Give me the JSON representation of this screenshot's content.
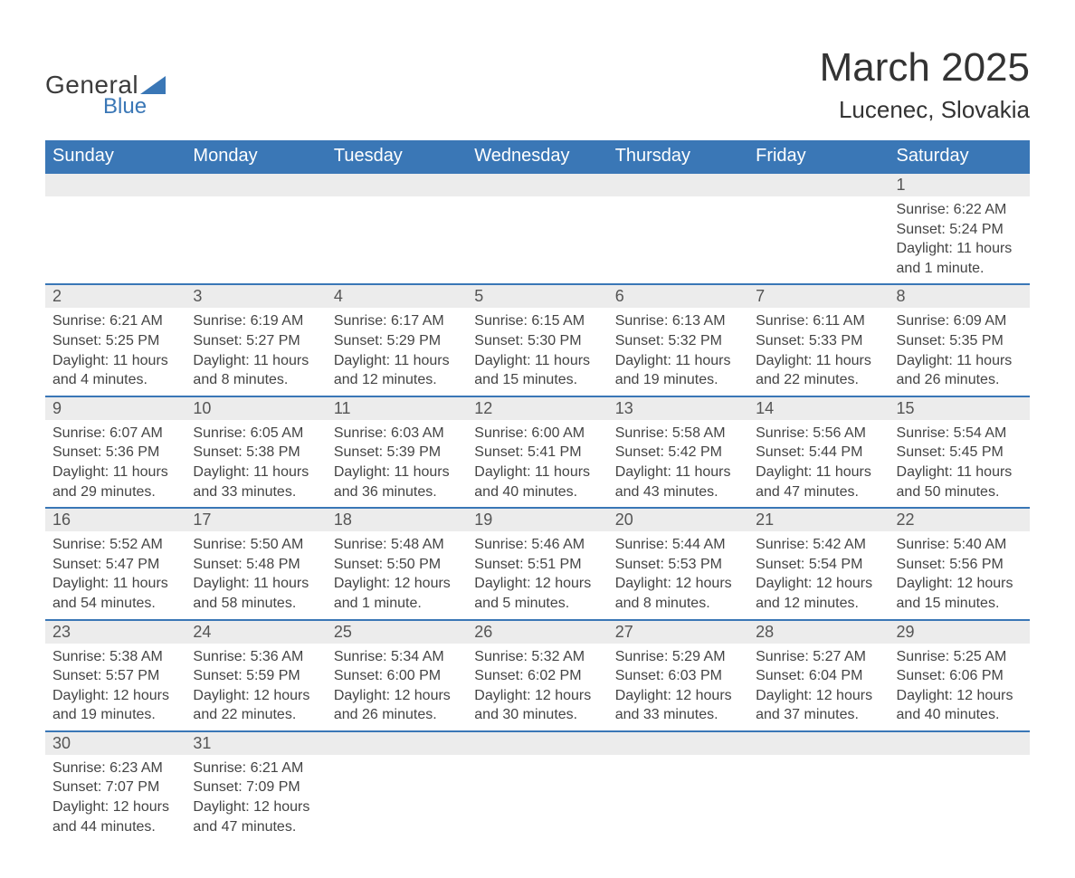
{
  "brand": {
    "text1": "General",
    "text2": "Blue",
    "tri_color": "#3a77b6"
  },
  "title": "March 2025",
  "location": "Lucenec, Slovakia",
  "colors": {
    "header_bg": "#3a77b6",
    "header_text": "#ffffff",
    "day_bg": "#ececec",
    "border": "#3a77b6",
    "body_text": "#444444"
  },
  "day_headers": [
    "Sunday",
    "Monday",
    "Tuesday",
    "Wednesday",
    "Thursday",
    "Friday",
    "Saturday"
  ],
  "weeks": [
    [
      null,
      null,
      null,
      null,
      null,
      null,
      {
        "n": "1",
        "sunrise": "Sunrise: 6:22 AM",
        "sunset": "Sunset: 5:24 PM",
        "daylight1": "Daylight: 11 hours",
        "daylight2": "and 1 minute."
      }
    ],
    [
      {
        "n": "2",
        "sunrise": "Sunrise: 6:21 AM",
        "sunset": "Sunset: 5:25 PM",
        "daylight1": "Daylight: 11 hours",
        "daylight2": "and 4 minutes."
      },
      {
        "n": "3",
        "sunrise": "Sunrise: 6:19 AM",
        "sunset": "Sunset: 5:27 PM",
        "daylight1": "Daylight: 11 hours",
        "daylight2": "and 8 minutes."
      },
      {
        "n": "4",
        "sunrise": "Sunrise: 6:17 AM",
        "sunset": "Sunset: 5:29 PM",
        "daylight1": "Daylight: 11 hours",
        "daylight2": "and 12 minutes."
      },
      {
        "n": "5",
        "sunrise": "Sunrise: 6:15 AM",
        "sunset": "Sunset: 5:30 PM",
        "daylight1": "Daylight: 11 hours",
        "daylight2": "and 15 minutes."
      },
      {
        "n": "6",
        "sunrise": "Sunrise: 6:13 AM",
        "sunset": "Sunset: 5:32 PM",
        "daylight1": "Daylight: 11 hours",
        "daylight2": "and 19 minutes."
      },
      {
        "n": "7",
        "sunrise": "Sunrise: 6:11 AM",
        "sunset": "Sunset: 5:33 PM",
        "daylight1": "Daylight: 11 hours",
        "daylight2": "and 22 minutes."
      },
      {
        "n": "8",
        "sunrise": "Sunrise: 6:09 AM",
        "sunset": "Sunset: 5:35 PM",
        "daylight1": "Daylight: 11 hours",
        "daylight2": "and 26 minutes."
      }
    ],
    [
      {
        "n": "9",
        "sunrise": "Sunrise: 6:07 AM",
        "sunset": "Sunset: 5:36 PM",
        "daylight1": "Daylight: 11 hours",
        "daylight2": "and 29 minutes."
      },
      {
        "n": "10",
        "sunrise": "Sunrise: 6:05 AM",
        "sunset": "Sunset: 5:38 PM",
        "daylight1": "Daylight: 11 hours",
        "daylight2": "and 33 minutes."
      },
      {
        "n": "11",
        "sunrise": "Sunrise: 6:03 AM",
        "sunset": "Sunset: 5:39 PM",
        "daylight1": "Daylight: 11 hours",
        "daylight2": "and 36 minutes."
      },
      {
        "n": "12",
        "sunrise": "Sunrise: 6:00 AM",
        "sunset": "Sunset: 5:41 PM",
        "daylight1": "Daylight: 11 hours",
        "daylight2": "and 40 minutes."
      },
      {
        "n": "13",
        "sunrise": "Sunrise: 5:58 AM",
        "sunset": "Sunset: 5:42 PM",
        "daylight1": "Daylight: 11 hours",
        "daylight2": "and 43 minutes."
      },
      {
        "n": "14",
        "sunrise": "Sunrise: 5:56 AM",
        "sunset": "Sunset: 5:44 PM",
        "daylight1": "Daylight: 11 hours",
        "daylight2": "and 47 minutes."
      },
      {
        "n": "15",
        "sunrise": "Sunrise: 5:54 AM",
        "sunset": "Sunset: 5:45 PM",
        "daylight1": "Daylight: 11 hours",
        "daylight2": "and 50 minutes."
      }
    ],
    [
      {
        "n": "16",
        "sunrise": "Sunrise: 5:52 AM",
        "sunset": "Sunset: 5:47 PM",
        "daylight1": "Daylight: 11 hours",
        "daylight2": "and 54 minutes."
      },
      {
        "n": "17",
        "sunrise": "Sunrise: 5:50 AM",
        "sunset": "Sunset: 5:48 PM",
        "daylight1": "Daylight: 11 hours",
        "daylight2": "and 58 minutes."
      },
      {
        "n": "18",
        "sunrise": "Sunrise: 5:48 AM",
        "sunset": "Sunset: 5:50 PM",
        "daylight1": "Daylight: 12 hours",
        "daylight2": "and 1 minute."
      },
      {
        "n": "19",
        "sunrise": "Sunrise: 5:46 AM",
        "sunset": "Sunset: 5:51 PM",
        "daylight1": "Daylight: 12 hours",
        "daylight2": "and 5 minutes."
      },
      {
        "n": "20",
        "sunrise": "Sunrise: 5:44 AM",
        "sunset": "Sunset: 5:53 PM",
        "daylight1": "Daylight: 12 hours",
        "daylight2": "and 8 minutes."
      },
      {
        "n": "21",
        "sunrise": "Sunrise: 5:42 AM",
        "sunset": "Sunset: 5:54 PM",
        "daylight1": "Daylight: 12 hours",
        "daylight2": "and 12 minutes."
      },
      {
        "n": "22",
        "sunrise": "Sunrise: 5:40 AM",
        "sunset": "Sunset: 5:56 PM",
        "daylight1": "Daylight: 12 hours",
        "daylight2": "and 15 minutes."
      }
    ],
    [
      {
        "n": "23",
        "sunrise": "Sunrise: 5:38 AM",
        "sunset": "Sunset: 5:57 PM",
        "daylight1": "Daylight: 12 hours",
        "daylight2": "and 19 minutes."
      },
      {
        "n": "24",
        "sunrise": "Sunrise: 5:36 AM",
        "sunset": "Sunset: 5:59 PM",
        "daylight1": "Daylight: 12 hours",
        "daylight2": "and 22 minutes."
      },
      {
        "n": "25",
        "sunrise": "Sunrise: 5:34 AM",
        "sunset": "Sunset: 6:00 PM",
        "daylight1": "Daylight: 12 hours",
        "daylight2": "and 26 minutes."
      },
      {
        "n": "26",
        "sunrise": "Sunrise: 5:32 AM",
        "sunset": "Sunset: 6:02 PM",
        "daylight1": "Daylight: 12 hours",
        "daylight2": "and 30 minutes."
      },
      {
        "n": "27",
        "sunrise": "Sunrise: 5:29 AM",
        "sunset": "Sunset: 6:03 PM",
        "daylight1": "Daylight: 12 hours",
        "daylight2": "and 33 minutes."
      },
      {
        "n": "28",
        "sunrise": "Sunrise: 5:27 AM",
        "sunset": "Sunset: 6:04 PM",
        "daylight1": "Daylight: 12 hours",
        "daylight2": "and 37 minutes."
      },
      {
        "n": "29",
        "sunrise": "Sunrise: 5:25 AM",
        "sunset": "Sunset: 6:06 PM",
        "daylight1": "Daylight: 12 hours",
        "daylight2": "and 40 minutes."
      }
    ],
    [
      {
        "n": "30",
        "sunrise": "Sunrise: 6:23 AM",
        "sunset": "Sunset: 7:07 PM",
        "daylight1": "Daylight: 12 hours",
        "daylight2": "and 44 minutes."
      },
      {
        "n": "31",
        "sunrise": "Sunrise: 6:21 AM",
        "sunset": "Sunset: 7:09 PM",
        "daylight1": "Daylight: 12 hours",
        "daylight2": "and 47 minutes."
      },
      null,
      null,
      null,
      null,
      null
    ]
  ]
}
